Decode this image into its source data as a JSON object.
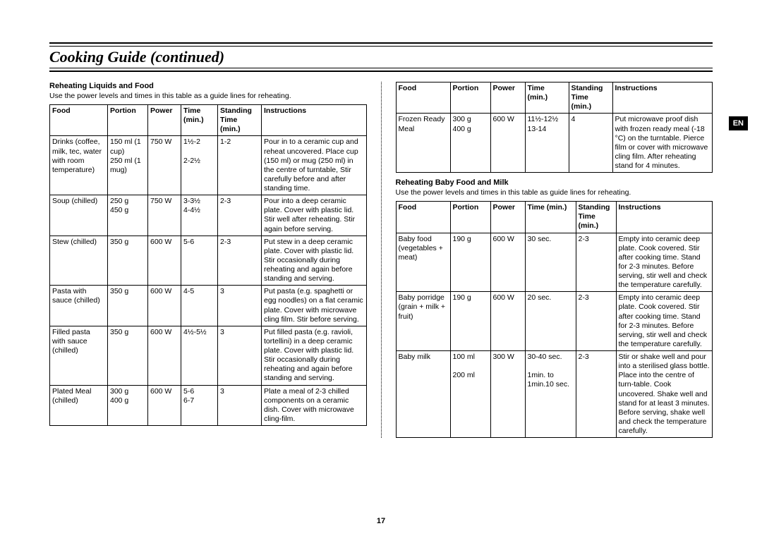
{
  "page_title": "Cooking Guide (continued)",
  "lang_tab": "EN",
  "page_number": "17",
  "section1": {
    "title": "Reheating Liquids and Food",
    "desc": "Use the power levels and times in this table as a guide lines for reheating.",
    "headers": [
      "Food",
      "Portion",
      "Power",
      "Time (min.)",
      "Standing Time (min.)",
      "Instructions"
    ],
    "rows": [
      {
        "food": "Drinks (coffee, milk, tec, water with room temperature)",
        "portion": "150 ml (1 cup)\n250 ml (1 mug)",
        "power": "750 W",
        "time": "1½-2\n\n2-2½",
        "standing": "1-2",
        "inst": "Pour in to a ceramic cup and reheat uncovered. Place cup (150 ml) or mug (250 ml) in the centre of turntable, Stir carefully before and after standing time."
      },
      {
        "food": "Soup (chilled)",
        "portion": "250 g\n450 g",
        "power": "750 W",
        "time": "3-3½\n4-4½",
        "standing": "2-3",
        "inst": "Pour into a deep ceramic plate. Cover with plastic lid. Stir well after reheating. Stir again before serving."
      },
      {
        "food": "Stew (chilled)",
        "portion": "350 g",
        "power": "600 W",
        "time": "5-6",
        "standing": "2-3",
        "inst": "Put stew in a deep ceramic plate. Cover with plastic lid. Stir occasionally during reheating and again before standing and serving."
      },
      {
        "food": "Pasta with sauce (chilled)",
        "portion": "350 g",
        "power": "600 W",
        "time": "4-5",
        "standing": "3",
        "inst": "Put pasta (e.g. spaghetti or egg noodles) on a flat ceramic plate. Cover with microwave cling film. Stir before serving."
      },
      {
        "food": "Filled pasta with sauce (chilled)",
        "portion": "350 g",
        "power": "600 W",
        "time": "4½-5½",
        "standing": "3",
        "inst": "Put filled pasta (e.g. ravioli, tortellini) in a deep ceramic plate. Cover with plastic lid. Stir occasionally during reheating and again before standing and serving."
      },
      {
        "food": "Plated Meal (chilled)",
        "portion": "300 g\n400 g",
        "power": "600 W",
        "time": "5-6\n6-7",
        "standing": "3",
        "inst": "Plate a meal of 2-3 chilled components on a ceramic dish. Cover with microwave cling-film."
      }
    ]
  },
  "section_right_top": {
    "headers": [
      "Food",
      "Portion",
      "Power",
      "Time (min.)",
      "Standing Time (min.)",
      "Instructions"
    ],
    "rows": [
      {
        "food": "Frozen Ready Meal",
        "portion": "300 g\n400 g",
        "power": "600 W",
        "time": "11½-12½\n13-14",
        "standing": "4",
        "inst": "Put microwave proof dish with frozen ready meal (-18 °C) on the turntable. Pierce film or cover with microwave cling film. After reheating stand for 4 minutes."
      }
    ]
  },
  "section2": {
    "title": "Reheating Baby Food and Milk",
    "desc": "Use the power levels and times in this table as guide lines for reheating.",
    "headers": [
      "Food",
      "Portion",
      "Power",
      "Time (min.)",
      "Standing Time (min.)",
      "Instructions"
    ],
    "rows": [
      {
        "food": "Baby food (vegetables + meat)",
        "portion": "190 g",
        "power": "600 W",
        "time": "30 sec.",
        "standing": "2-3",
        "inst": "Empty into ceramic deep plate. Cook covered. Stir after cooking time. Stand for 2-3 minutes. Before serving, stir well and check the temperature carefully."
      },
      {
        "food": "Baby porridge (grain + milk + fruit)",
        "portion": "190 g",
        "power": "600 W",
        "time": "20 sec.",
        "standing": "2-3",
        "inst": "Empty into ceramic deep plate. Cook covered. Stir after cooking time. Stand for 2-3 minutes. Before serving, stir well and check the temperature carefully."
      },
      {
        "food": "Baby milk",
        "portion": "100 ml\n\n200 ml",
        "power": "300 W",
        "time": "30-40 sec.\n\n1min. to 1min.10 sec.",
        "standing": "2-3",
        "inst": "Stir or shake well and pour into a sterilised glass bottle. Place into the centre of turn-table. Cook uncovered. Shake well and stand for at least 3 minutes. Before serving, shake well and check the temperature carefully."
      }
    ]
  }
}
